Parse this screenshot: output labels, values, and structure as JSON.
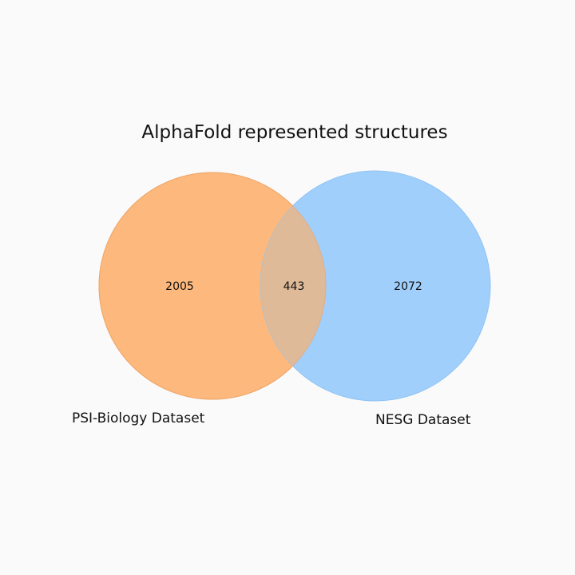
{
  "title": "AlphaFold represented structures",
  "sets": [
    {
      "label": "PSI-Biology Dataset",
      "only_count": "2005",
      "color": "#fdb97d"
    },
    {
      "label": "NESG Dataset",
      "only_count": "2072",
      "color": "#a1cffb"
    }
  ],
  "intersection": {
    "count": "443",
    "color": "#deba98"
  },
  "background": "#fafafa"
}
